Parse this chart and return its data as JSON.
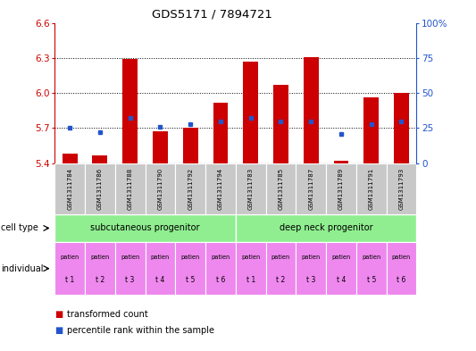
{
  "title": "GDS5171 / 7894721",
  "samples": [
    "GSM1311784",
    "GSM1311786",
    "GSM1311788",
    "GSM1311790",
    "GSM1311792",
    "GSM1311794",
    "GSM1311783",
    "GSM1311785",
    "GSM1311787",
    "GSM1311789",
    "GSM1311791",
    "GSM1311793"
  ],
  "bar_bottom": 5.4,
  "bar_tops": [
    5.48,
    5.47,
    6.29,
    5.67,
    5.7,
    5.92,
    6.27,
    6.07,
    6.31,
    5.42,
    5.96,
    6.0
  ],
  "blue_pct": [
    25,
    22,
    32,
    26,
    28,
    30,
    32,
    30,
    30,
    21,
    28,
    30
  ],
  "ylim_left": [
    5.4,
    6.6
  ],
  "ylim_right": [
    0,
    100
  ],
  "yticks_left": [
    5.4,
    5.7,
    6.0,
    6.3,
    6.6
  ],
  "yticks_right": [
    0,
    25,
    50,
    75,
    100
  ],
  "ytick_labels_right": [
    "0",
    "25",
    "50",
    "75",
    "100%"
  ],
  "bar_color": "#cc0000",
  "blue_color": "#2255cc",
  "sample_bg": "#c8c8c8",
  "cell_type_color": "#90ee90",
  "individual_color": "#ee88ee",
  "legend_red": "transformed count",
  "legend_blue": "percentile rank within the sample",
  "left_color": "#cc0000",
  "right_color": "#2255cc"
}
